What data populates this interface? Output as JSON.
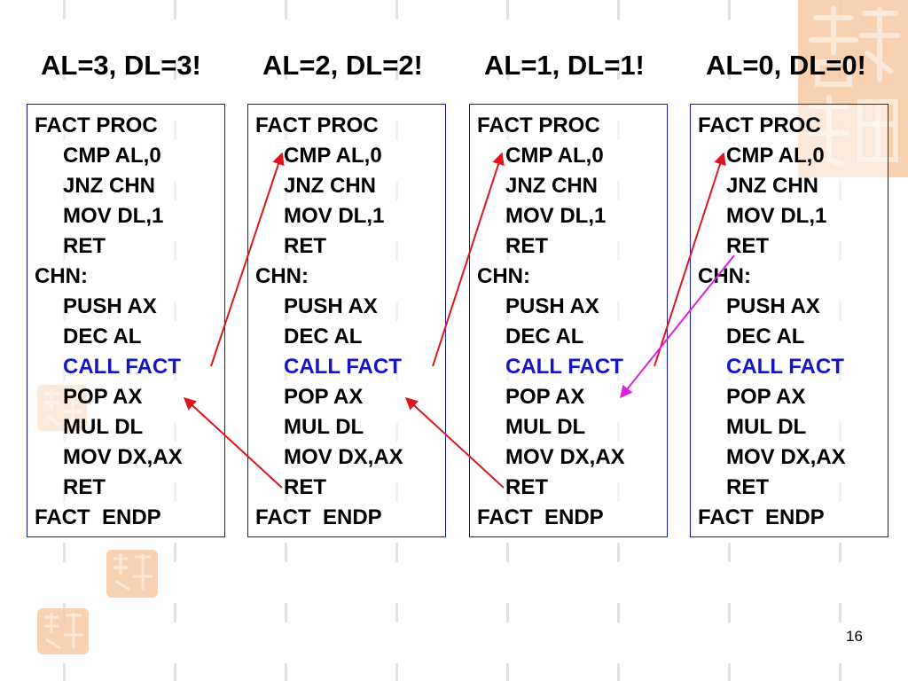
{
  "titles": [
    "AL=3, DL=3!",
    "AL=2, DL=2!",
    "AL=1, DL=1!",
    "AL=0, DL=0!"
  ],
  "code_lines": [
    {
      "text": "FACT PROC",
      "indent": false,
      "call": false
    },
    {
      "text": "CMP AL,0",
      "indent": true,
      "call": false
    },
    {
      "text": "JNZ CHN",
      "indent": true,
      "call": false
    },
    {
      "text": "MOV DL,1",
      "indent": true,
      "call": false
    },
    {
      "text": "RET",
      "indent": true,
      "call": false
    },
    {
      "text": "CHN:",
      "indent": false,
      "call": false
    },
    {
      "text": "PUSH AX",
      "indent": true,
      "call": false
    },
    {
      "text": "DEC AL",
      "indent": true,
      "call": false
    },
    {
      "text": "CALL FACT",
      "indent": true,
      "call": true
    },
    {
      "text": "POP AX",
      "indent": true,
      "call": false
    },
    {
      "text": "MUL DL",
      "indent": true,
      "call": false
    },
    {
      "text": "MOV DX,AX",
      "indent": true,
      "call": false
    },
    {
      "text": "RET",
      "indent": true,
      "call": false
    },
    {
      "text": "FACT  ENDP",
      "indent": false,
      "call": false
    }
  ],
  "colors": {
    "call_arrow": "#e0141e",
    "return_arrow": "#e0141e",
    "final_return_arrow": "#e020e0",
    "box_border": "#1c1ca8",
    "call_text": "#1414c8"
  },
  "decorations": [
    "seal-stamp-decoration"
  ],
  "page_number": "16"
}
